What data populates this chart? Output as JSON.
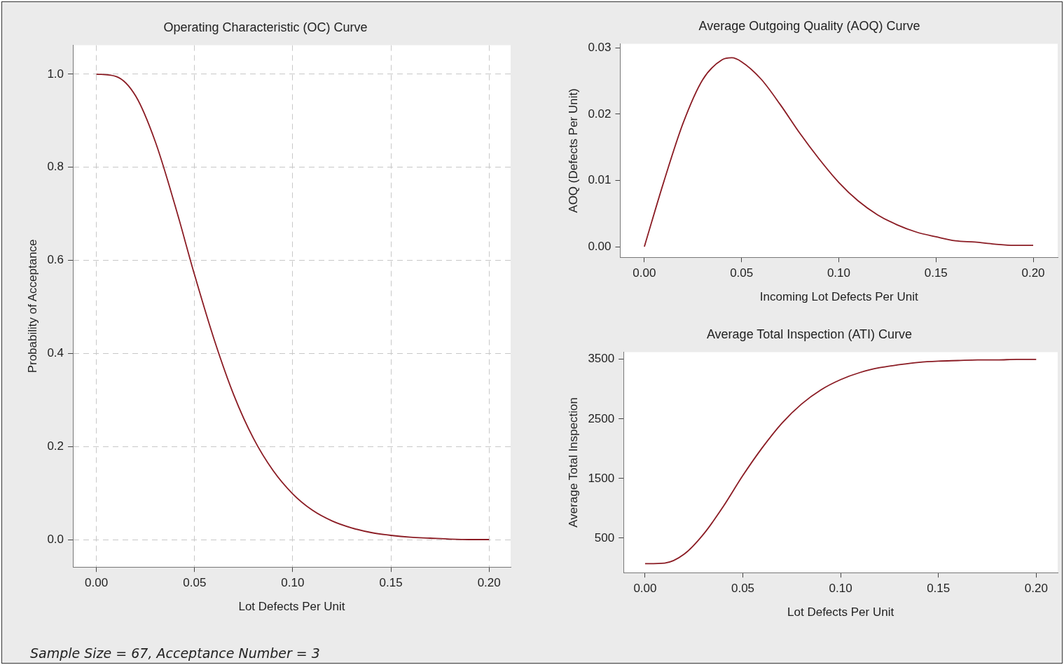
{
  "chart_data": [
    {
      "type": "line",
      "title": "Operating Characteristic (OC) Curve",
      "xlabel": "Lot Defects Per Unit",
      "ylabel": "Probability of Acceptance",
      "x": [
        0,
        0.01,
        0.02,
        0.03,
        0.04,
        0.05,
        0.06,
        0.07,
        0.08,
        0.09,
        0.1,
        0.11,
        0.12,
        0.13,
        0.14,
        0.15,
        0.16,
        0.17,
        0.18,
        0.19,
        0.2
      ],
      "series": [
        {
          "color": "#8b1c24",
          "values": [
            1.0,
            0.995,
            0.953,
            0.855,
            0.719,
            0.569,
            0.43,
            0.311,
            0.218,
            0.149,
            0.099,
            0.064,
            0.041,
            0.026,
            0.016,
            0.01,
            0.006,
            0.004,
            0.002,
            0.001,
            0.001
          ]
        }
      ],
      "xlim": [
        -0.012,
        0.211
      ],
      "ylim": [
        -0.058,
        1.062
      ],
      "xticks": [
        {
          "value": 0,
          "label": "0.00"
        },
        {
          "value": 0.05,
          "label": "0.05"
        },
        {
          "value": 0.1,
          "label": "0.10"
        },
        {
          "value": 0.15,
          "label": "0.15"
        },
        {
          "value": 0.2,
          "label": "0.20"
        }
      ],
      "yticks": [
        {
          "value": 0,
          "label": "0.0"
        },
        {
          "value": 0.2,
          "label": "0.2"
        },
        {
          "value": 0.4,
          "label": "0.4"
        },
        {
          "value": 0.6,
          "label": "0.6"
        },
        {
          "value": 0.8,
          "label": "0.8"
        },
        {
          "value": 1,
          "label": "1.0"
        }
      ],
      "grid": true,
      "line_style": "solid",
      "marker": "none",
      "annotations": [
        "Sample Size = 67, Acceptance Number = 3"
      ]
    },
    {
      "type": "line",
      "title": "Average Outgoing Quality (AOQ) Curve",
      "xlabel": "Incoming Lot Defects Per Unit",
      "ylabel": "AOQ (Defects Per Unit)",
      "x": [
        0,
        0.01,
        0.02,
        0.03,
        0.04,
        0.045,
        0.05,
        0.06,
        0.07,
        0.08,
        0.09,
        0.1,
        0.11,
        0.12,
        0.13,
        0.14,
        0.15,
        0.16,
        0.17,
        0.18,
        0.19,
        0.2
      ],
      "series": [
        {
          "color": "#8b1c24",
          "values": [
            0,
            0.0098,
            0.0187,
            0.0252,
            0.0282,
            0.0285,
            0.0279,
            0.0253,
            0.0214,
            0.0171,
            0.0132,
            0.0097,
            0.0069,
            0.0048,
            0.0033,
            0.0022,
            0.0015,
            0.0009,
            0.0007,
            0.0004,
            0.0002,
            0.0002
          ]
        }
      ],
      "xlim": [
        -0.0124,
        0.2126
      ],
      "ylim": [
        -0.0016,
        0.0306
      ],
      "xticks": [
        {
          "value": 0,
          "label": "0.00"
        },
        {
          "value": 0.05,
          "label": "0.05"
        },
        {
          "value": 0.1,
          "label": "0.10"
        },
        {
          "value": 0.15,
          "label": "0.15"
        },
        {
          "value": 0.2,
          "label": "0.20"
        }
      ],
      "yticks": [
        {
          "value": 0,
          "label": "0.00"
        },
        {
          "value": 0.01,
          "label": "0.01"
        },
        {
          "value": 0.02,
          "label": "0.02"
        },
        {
          "value": 0.03,
          "label": "0.03"
        }
      ],
      "line_style": "solid",
      "marker": "none"
    },
    {
      "type": "line",
      "title": "Average Total Inspection (ATI) Curve",
      "xlabel": "Lot Defects Per Unit",
      "ylabel": "Average Total Inspection",
      "x": [
        0,
        0.01,
        0.02,
        0.03,
        0.04,
        0.05,
        0.06,
        0.07,
        0.08,
        0.09,
        0.1,
        0.11,
        0.12,
        0.13,
        0.14,
        0.15,
        0.16,
        0.17,
        0.18,
        0.19,
        0.2
      ],
      "series": [
        {
          "color": "#8b1c24",
          "values": [
            70,
            80,
            230,
            570,
            1030,
            1550,
            2020,
            2430,
            2750,
            2990,
            3160,
            3280,
            3360,
            3410,
            3450,
            3470,
            3480,
            3490,
            3490,
            3500,
            3500
          ]
        }
      ],
      "xlim": [
        -0.011,
        0.211
      ],
      "ylim": [
        -80,
        3620
      ],
      "xticks": [
        {
          "value": 0,
          "label": "0.00"
        },
        {
          "value": 0.05,
          "label": "0.05"
        },
        {
          "value": 0.1,
          "label": "0.10"
        },
        {
          "value": 0.15,
          "label": "0.15"
        },
        {
          "value": 0.2,
          "label": "0.20"
        }
      ],
      "yticks": [
        500,
        1500,
        2500,
        3500
      ],
      "line_style": "solid",
      "marker": "none"
    }
  ]
}
